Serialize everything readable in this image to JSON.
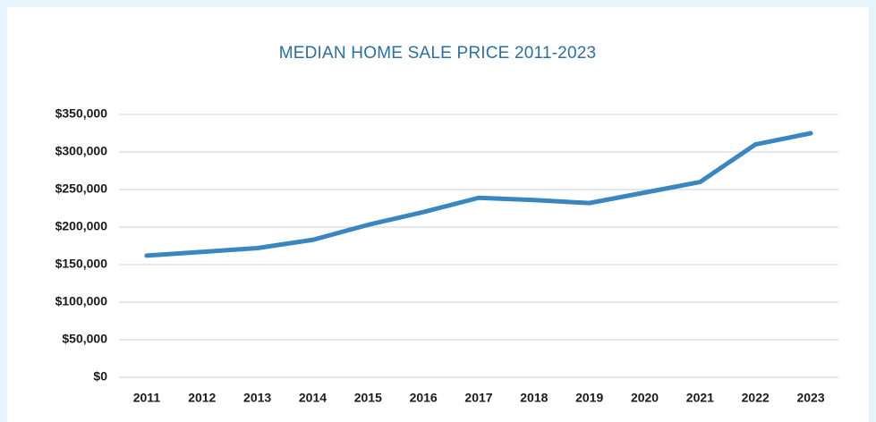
{
  "chart_data": {
    "type": "line",
    "title": "MEDIAN HOME SALE PRICE 2011-2023",
    "categories": [
      "2011",
      "2012",
      "2013",
      "2014",
      "2015",
      "2016",
      "2017",
      "2018",
      "2019",
      "2020",
      "2021",
      "2022",
      "2023"
    ],
    "values": [
      162000,
      167000,
      172000,
      183000,
      203000,
      220000,
      239000,
      236000,
      232000,
      246000,
      260000,
      310000,
      325000
    ],
    "color": "#3a86c0",
    "ylim": [
      0,
      350000
    ],
    "yticks": [
      {
        "value": 0,
        "label": "$0"
      },
      {
        "value": 50000,
        "label": "$50,000"
      },
      {
        "value": 100000,
        "label": "$100,000"
      },
      {
        "value": 150000,
        "label": "$150,000"
      },
      {
        "value": 200000,
        "label": "$200,000"
      },
      {
        "value": 250000,
        "label": "$250,000"
      },
      {
        "value": 300000,
        "label": "$300,000"
      },
      {
        "value": 350000,
        "label": "$350,000"
      }
    ],
    "grid": true
  }
}
